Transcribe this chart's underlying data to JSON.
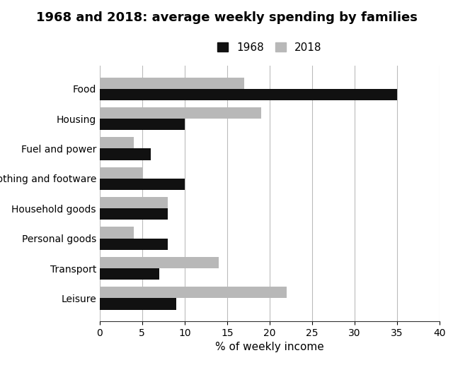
{
  "title": "1968 and 2018: average weekly spending by families",
  "xlabel": "% of weekly income",
  "categories": [
    "Food",
    "Housing",
    "Fuel and power",
    "Clothing and footware",
    "Household goods",
    "Personal goods",
    "Transport",
    "Leisure"
  ],
  "values_1968": [
    35,
    10,
    6,
    10,
    8,
    8,
    7,
    9
  ],
  "values_2018": [
    17,
    19,
    4,
    5,
    8,
    4,
    14,
    22
  ],
  "color_1968": "#111111",
  "color_2018": "#b8b8b8",
  "xlim": [
    0,
    40
  ],
  "xticks": [
    0,
    5,
    10,
    15,
    20,
    25,
    30,
    35,
    40
  ],
  "legend_1968": "1968",
  "legend_2018": "2018",
  "bar_height": 0.38,
  "background_color": "#ffffff",
  "grid_color": "#bbbbbb",
  "title_fontsize": 13,
  "label_fontsize": 10,
  "tick_fontsize": 10,
  "legend_fontsize": 11
}
